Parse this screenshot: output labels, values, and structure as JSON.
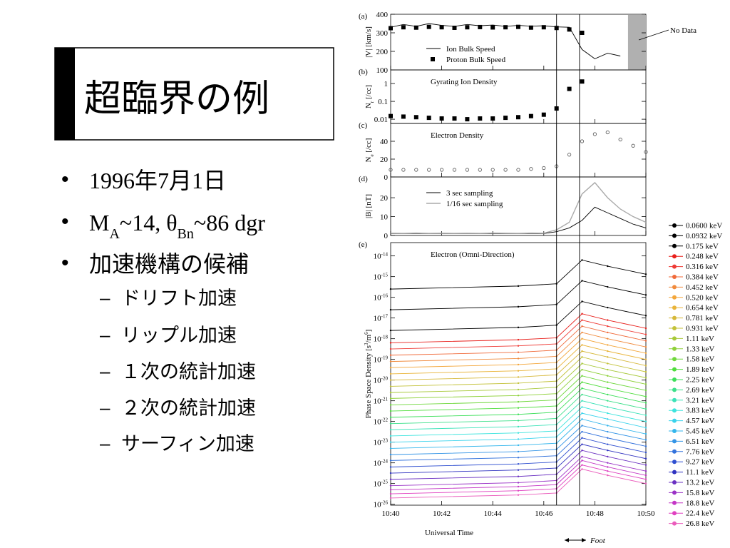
{
  "slide": {
    "title": "超臨界の例",
    "bullets": [
      {
        "text": "1996年7月1日"
      },
      {
        "parts": [
          "M",
          "A",
          "~14, θ",
          "Bn",
          "~86 dgr"
        ],
        "script": "sub"
      },
      {
        "text": "加速機構の候補"
      }
    ],
    "sub_bullets": [
      "ドリフト加速",
      "リップル加速",
      "１次の統計加速",
      "２次の統計加速",
      "サーフィン加速"
    ]
  },
  "chart_data": [
    {
      "type": "line",
      "label": "(a)",
      "ylabel_parts": [
        "|V| [km/s]"
      ],
      "ylim": [
        100,
        400
      ],
      "yticks": [
        100,
        200,
        300,
        400
      ],
      "legend": "lower left",
      "no_data": [
        649.3,
        650
      ],
      "no_data_label": "No Data",
      "series": [
        {
          "name": "Ion Bulk Speed",
          "color": "#000000",
          "style": "line",
          "x": [
            640,
            640.5,
            641,
            641.5,
            642,
            642.5,
            643,
            643.5,
            644,
            644.5,
            645,
            645.5,
            646,
            646.5,
            647,
            647.5,
            648,
            648.5,
            649
          ],
          "values": [
            330,
            345,
            335,
            350,
            340,
            335,
            345,
            338,
            342,
            335,
            340,
            336,
            338,
            332,
            330,
            210,
            160,
            190,
            175
          ]
        },
        {
          "name": "Proton Bulk Speed",
          "color": "#000000",
          "style": "none",
          "marker": "square",
          "x": [
            640,
            640.5,
            641,
            641.5,
            642,
            642.5,
            643,
            643.5,
            644,
            644.5,
            645,
            645.5,
            646,
            646.5,
            647,
            647.5
          ],
          "values": [
            325,
            330,
            328,
            332,
            330,
            327,
            330,
            331,
            329,
            330,
            332,
            328,
            330,
            326,
            318,
            300
          ]
        }
      ]
    },
    {
      "type": "scatter",
      "label": "(b)",
      "ylabel_parts": [
        "N",
        "r",
        " [/cc]"
      ],
      "script": "sub",
      "log": true,
      "ylim": [
        0.0058,
        5.8
      ],
      "yticks": [
        0.01,
        0.1,
        1
      ],
      "title": "Gyrating Ion Density",
      "x": [
        640,
        640.5,
        641,
        641.5,
        642,
        642.5,
        643,
        643.5,
        644,
        644.5,
        645,
        645.5,
        646,
        646.5,
        647,
        647.5
      ],
      "series": [
        {
          "color": "#000000",
          "style": "none",
          "marker": "square",
          "values": [
            0.015,
            0.014,
            0.013,
            0.012,
            0.011,
            0.011,
            0.01,
            0.011,
            0.011,
            0.012,
            0.013,
            0.015,
            0.018,
            0.04,
            0.5,
            1.3
          ]
        }
      ]
    },
    {
      "type": "scatter",
      "label": "(c)",
      "ylabel_parts": [
        "N",
        "e",
        " [/cc]"
      ],
      "script": "sub",
      "ylim": [
        0,
        60
      ],
      "yticks": [
        0,
        20,
        40
      ],
      "title": "Electron Density",
      "x": [
        640,
        640.5,
        641,
        641.5,
        642,
        642.5,
        643,
        643.5,
        644,
        644.5,
        645,
        645.5,
        646,
        646.5,
        647,
        647.5,
        648,
        648.5,
        649,
        649.5,
        650
      ],
      "series": [
        {
          "color": "#555555",
          "style": "none",
          "marker": "circle",
          "values": [
            8,
            8,
            8,
            8,
            8,
            8,
            8,
            8,
            8,
            8,
            8,
            9,
            10,
            12,
            25,
            40,
            48,
            50,
            42,
            35,
            28
          ]
        }
      ]
    },
    {
      "type": "line",
      "label": "(d)",
      "ylabel_parts": [
        "|B| [nT]"
      ],
      "ylim": [
        0,
        31
      ],
      "yticks": [
        0,
        10,
        20
      ],
      "legend": "upper left",
      "x": [
        640,
        640.5,
        641,
        641.5,
        642,
        642.5,
        643,
        643.5,
        644,
        644.5,
        645,
        645.5,
        646,
        646.5,
        647,
        647.5,
        648,
        648.5,
        649,
        649.5,
        650
      ],
      "series": [
        {
          "name": "3 sec sampling",
          "color": "#000000",
          "style": "line",
          "values": [
            1,
            1,
            1,
            1,
            1,
            1,
            1,
            1,
            1,
            1,
            1,
            1,
            1,
            2,
            4,
            8,
            15,
            12,
            9,
            6,
            4
          ]
        },
        {
          "name": "1/16 sec sampling",
          "color": "#aaaaaa",
          "style": "line",
          "values": [
            1.2,
            1.1,
            1.3,
            1.1,
            1.2,
            1.1,
            1.2,
            1.1,
            1.3,
            1.2,
            1.1,
            1.3,
            1.2,
            3,
            7,
            22,
            28,
            20,
            14,
            10,
            7
          ]
        }
      ]
    },
    {
      "type": "line",
      "label": "(e)",
      "ylabel_parts": [
        "Phase Space Density [s",
        "3",
        "/m",
        "6",
        "]"
      ],
      "script": "sup",
      "log": true,
      "ylim": [
        9e-27,
        4.4e-14
      ],
      "yticks": [
        {
          "value": 1e-14,
          "label": "10",
          "exponent": "-14"
        },
        {
          "value": 1e-15,
          "label": "10",
          "exponent": "-15"
        },
        {
          "value": 1e-16,
          "label": "10",
          "exponent": "-16"
        },
        {
          "value": 1e-17,
          "label": "10",
          "exponent": "-17"
        },
        {
          "value": 1e-18,
          "label": "10",
          "exponent": "-18"
        },
        {
          "value": 1e-19,
          "label": "10",
          "exponent": "-19"
        },
        {
          "value": 1e-20,
          "label": "10",
          "exponent": "-20"
        },
        {
          "value": 1e-21,
          "label": "10",
          "exponent": "-21"
        },
        {
          "value": 1e-22,
          "label": "10",
          "exponent": "-22"
        },
        {
          "value": 1e-23,
          "label": "10",
          "exponent": "-23"
        },
        {
          "value": 1e-24,
          "label": "10",
          "exponent": "-24"
        },
        {
          "value": 1e-25,
          "label": "10",
          "exponent": "-25"
        },
        {
          "value": 1e-26,
          "label": "10",
          "exponent": "-26"
        }
      ],
      "title": "Electron (Omni-Direction)",
      "legend": "outside right",
      "xlim": [
        640,
        650
      ],
      "xticks": [
        {
          "value": 640,
          "label": "10:40"
        },
        {
          "value": 642,
          "label": "10:42"
        },
        {
          "value": 644,
          "label": "10:44"
        },
        {
          "value": 646,
          "label": "10:46"
        },
        {
          "value": 648,
          "label": "10:48"
        },
        {
          "value": 650,
          "label": "10:50"
        }
      ],
      "xlabel": "Universal Time",
      "foot": [
        646.5,
        647.4
      ],
      "foot_label": "Foot",
      "x": [
        640,
        645,
        646.5,
        647.5,
        648.5,
        650
      ],
      "series": [
        {
          "name": "0.0600 keV",
          "color": "#000000",
          "style": "line",
          "marker": "dot",
          "values": [
            2.5e-16,
            3.5e-16,
            4.5e-16,
            6.3e-15,
            3.2e-15,
            1.3e-15
          ]
        },
        {
          "name": "0.0932 keV",
          "color": "#000000",
          "style": "line",
          "marker": "dot",
          "values": [
            2.5e-17,
            3.5e-17,
            4.5e-17,
            6.3e-16,
            3.2e-16,
            1.3e-16
          ]
        },
        {
          "name": "0.175 keV",
          "color": "#000000",
          "style": "line",
          "marker": "dot",
          "values": [
            2.5e-18,
            3.5e-18,
            4.5e-18,
            6.3e-17,
            3.2e-17,
            1.3e-17
          ]
        },
        {
          "name": "0.248 keV",
          "color": "#e8201c",
          "style": "line",
          "marker": "dot",
          "values": [
            6.3e-19,
            8.9e-19,
            1.1e-18,
            1.6e-17,
            7.9e-18,
            3.2e-18
          ]
        },
        {
          "name": "0.316 keV",
          "color": "#ee3b36",
          "style": "line",
          "marker": "dot",
          "values": [
            3.2e-19,
            4.5e-19,
            5.6e-19,
            7.9e-18,
            4e-18,
            1.6e-18
          ]
        },
        {
          "name": "0.384 keV",
          "color": "#f06a3a",
          "style": "line",
          "marker": "dot",
          "values": [
            1.6e-19,
            2.2e-19,
            2.8e-19,
            4e-18,
            2e-18,
            7.9e-19
          ]
        },
        {
          "name": "0.452 keV",
          "color": "#f08a3c",
          "style": "line",
          "marker": "dot",
          "values": [
            7.9e-20,
            1.1e-19,
            1.4e-19,
            2e-18,
            1e-18,
            4e-19
          ]
        },
        {
          "name": "0.520 keV",
          "color": "#f3a63a",
          "style": "line",
          "marker": "dot",
          "values": [
            4e-20,
            5.6e-20,
            7.1e-20,
            1e-18,
            5e-19,
            2e-19
          ]
        },
        {
          "name": "0.654 keV",
          "color": "#e9b43a",
          "style": "line",
          "marker": "dot",
          "values": [
            2e-20,
            2.8e-20,
            3.5e-20,
            5e-19,
            2.5e-19,
            1e-19
          ]
        },
        {
          "name": "0.781 keV",
          "color": "#d6b83a",
          "style": "line",
          "marker": "dot",
          "values": [
            1e-20,
            1.4e-20,
            1.8e-20,
            2.5e-19,
            1.3e-19,
            5e-20
          ]
        },
        {
          "name": "0.931 keV",
          "color": "#c3c23a",
          "style": "line",
          "marker": "dot",
          "values": [
            5e-21,
            7.1e-21,
            8.9e-21,
            1.3e-19,
            6.3e-20,
            2.5e-20
          ]
        },
        {
          "name": "1.11 keV",
          "color": "#a8c93a",
          "style": "line",
          "marker": "dot",
          "values": [
            2.5e-21,
            3.5e-21,
            4.5e-21,
            6.3e-20,
            3.2e-20,
            1.3e-20
          ]
        },
        {
          "name": "1.33 keV",
          "color": "#8fd13a",
          "style": "line",
          "marker": "dot",
          "values": [
            1.3e-21,
            1.8e-21,
            2.2e-21,
            3.2e-20,
            1.6e-20,
            6.3e-21
          ]
        },
        {
          "name": "1.58 keV",
          "color": "#6fd83c",
          "style": "line",
          "marker": "dot",
          "values": [
            6.3e-22,
            8.9e-22,
            1.1e-21,
            1.6e-20,
            7.9e-21,
            3.2e-21
          ]
        },
        {
          "name": "1.89 keV",
          "color": "#4fdd3c",
          "style": "line",
          "marker": "dot",
          "values": [
            3.2e-22,
            4.5e-22,
            5.6e-22,
            7.9e-21,
            4e-21,
            1.6e-21
          ]
        },
        {
          "name": "2.25 keV",
          "color": "#3ddf5a",
          "style": "line",
          "marker": "dot",
          "values": [
            1.6e-22,
            2.2e-22,
            2.8e-22,
            4e-21,
            2e-21,
            7.9e-22
          ]
        },
        {
          "name": "2.69 keV",
          "color": "#3ce08a",
          "style": "line",
          "marker": "dot",
          "values": [
            7.9e-23,
            1.1e-22,
            1.4e-22,
            2e-21,
            1e-21,
            4e-22
          ]
        },
        {
          "name": "3.21 keV",
          "color": "#3ce2b8",
          "style": "line",
          "marker": "dot",
          "values": [
            4e-23,
            5.6e-23,
            7.1e-23,
            1e-21,
            5e-22,
            2e-22
          ]
        },
        {
          "name": "3.83 keV",
          "color": "#3ee4de",
          "style": "line",
          "marker": "dot",
          "values": [
            2e-23,
            2.8e-23,
            3.5e-23,
            5e-22,
            2.5e-22,
            1e-22
          ]
        },
        {
          "name": "4.57 keV",
          "color": "#3ad3ec",
          "style": "line",
          "marker": "dot",
          "values": [
            1e-23,
            1.4e-23,
            1.8e-23,
            2.5e-22,
            1.3e-22,
            5e-23
          ]
        },
        {
          "name": "5.45 keV",
          "color": "#34b6ec",
          "style": "line",
          "marker": "dot",
          "values": [
            5e-24,
            7.1e-24,
            8.9e-24,
            1.3e-22,
            6.3e-23,
            2.5e-23
          ]
        },
        {
          "name": "6.51 keV",
          "color": "#3394e6",
          "style": "line",
          "marker": "dot",
          "values": [
            2.5e-24,
            3.5e-24,
            4.5e-24,
            6.3e-23,
            3.2e-23,
            1.3e-23
          ]
        },
        {
          "name": "7.76 keV",
          "color": "#3372dc",
          "style": "line",
          "marker": "dot",
          "values": [
            1.3e-24,
            1.8e-24,
            2.2e-24,
            3.2e-23,
            1.6e-23,
            6.3e-24
          ]
        },
        {
          "name": "9.27 keV",
          "color": "#2f4fd0",
          "style": "line",
          "marker": "dot",
          "values": [
            6.3e-25,
            8.9e-25,
            1.1e-24,
            1.6e-23,
            7.9e-24,
            3.2e-24
          ]
        },
        {
          "name": "11.1 keV",
          "color": "#2f32c0",
          "style": "line",
          "marker": "dot",
          "values": [
            3.2e-25,
            4.5e-25,
            5.6e-25,
            7.9e-24,
            4e-24,
            1.6e-24
          ]
        },
        {
          "name": "13.2 keV",
          "color": "#6a30c2",
          "style": "line",
          "marker": "dot",
          "values": [
            1.6e-25,
            2.2e-25,
            2.8e-25,
            4e-24,
            2e-24,
            7.9e-25
          ]
        },
        {
          "name": "15.8 keV",
          "color": "#9a32c6",
          "style": "line",
          "marker": "dot",
          "values": [
            7.9e-26,
            1.1e-25,
            1.4e-25,
            2e-24,
            1e-24,
            4e-25
          ]
        },
        {
          "name": "18.8 keV",
          "color": "#c436c6",
          "style": "line",
          "marker": "dot",
          "values": [
            5e-26,
            7.1e-26,
            8.9e-26,
            1.3e-24,
            6.3e-25,
            2.5e-25
          ]
        },
        {
          "name": "22.4 keV",
          "color": "#e040c0",
          "style": "line",
          "marker": "dot",
          "values": [
            3.2e-26,
            4.5e-26,
            5.6e-26,
            7.9e-25,
            4e-25,
            1.6e-25
          ]
        },
        {
          "name": "26.8 keV",
          "color": "#ea5cbc",
          "style": "line",
          "marker": "dot",
          "values": [
            2e-26,
            2.8e-26,
            3.5e-26,
            5e-25,
            2.5e-25,
            1e-25
          ]
        }
      ]
    }
  ]
}
